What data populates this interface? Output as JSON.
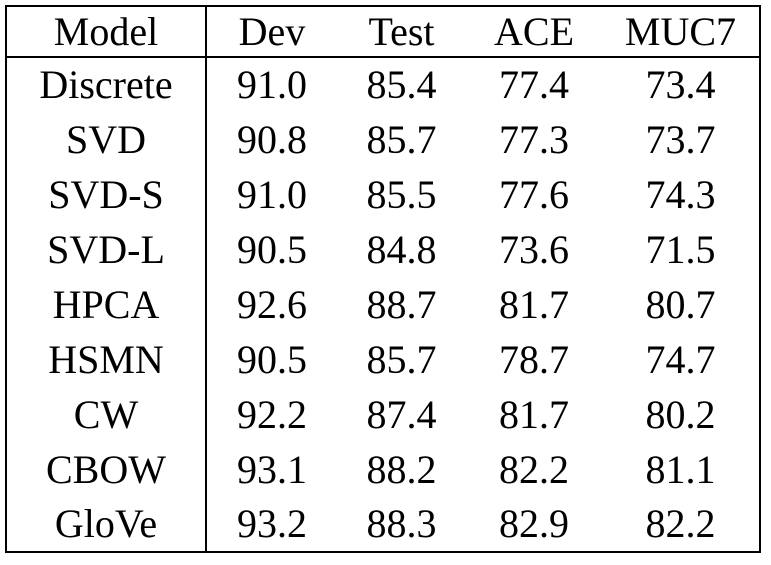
{
  "table": {
    "columns": [
      "Model",
      "Dev",
      "Test",
      "ACE",
      "MUC7"
    ],
    "rows": [
      {
        "model": "Discrete",
        "values": [
          "91.0",
          "85.4",
          "77.4",
          "73.4"
        ],
        "bold": [
          false,
          false,
          false,
          false
        ]
      },
      {
        "model": "SVD",
        "values": [
          "90.8",
          "85.7",
          "77.3",
          "73.7"
        ],
        "bold": [
          false,
          false,
          false,
          false
        ]
      },
      {
        "model": "SVD-S",
        "values": [
          "91.0",
          "85.5",
          "77.6",
          "74.3"
        ],
        "bold": [
          false,
          false,
          false,
          false
        ]
      },
      {
        "model": "SVD-L",
        "values": [
          "90.5",
          "84.8",
          "73.6",
          "71.5"
        ],
        "bold": [
          false,
          false,
          false,
          false
        ]
      },
      {
        "model": "HPCA",
        "values": [
          "92.6",
          "88.7",
          "81.7",
          "80.7"
        ],
        "bold": [
          false,
          true,
          false,
          false
        ]
      },
      {
        "model": "HSMN",
        "values": [
          "90.5",
          "85.7",
          "78.7",
          "74.7"
        ],
        "bold": [
          false,
          false,
          false,
          false
        ]
      },
      {
        "model": "CW",
        "values": [
          "92.2",
          "87.4",
          "81.7",
          "80.2"
        ],
        "bold": [
          false,
          false,
          false,
          false
        ]
      },
      {
        "model": "CBOW",
        "values": [
          "93.1",
          "88.2",
          "82.2",
          "81.1"
        ],
        "bold": [
          false,
          false,
          false,
          false
        ]
      },
      {
        "model": "GloVe",
        "values": [
          "93.2",
          "88.3",
          "82.9",
          "82.2"
        ],
        "bold": [
          true,
          false,
          true,
          true
        ]
      }
    ],
    "colors": {
      "border": "#000000",
      "text": "#000000",
      "background": "#ffffff"
    }
  }
}
